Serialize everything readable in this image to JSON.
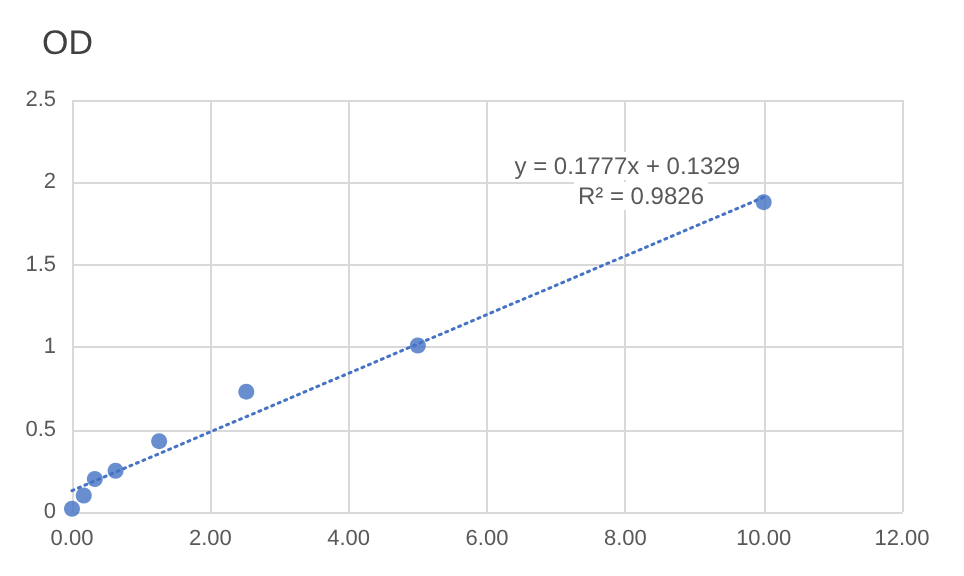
{
  "chart_data": {
    "type": "scatter",
    "title": "OD",
    "marker": "circle",
    "grid": true,
    "xlim": [
      0,
      12
    ],
    "xticks": [
      {
        "value": 0,
        "label": "0.00"
      },
      {
        "value": 2,
        "label": "2.00"
      },
      {
        "value": 4,
        "label": "4.00"
      },
      {
        "value": 6,
        "label": "6.00"
      },
      {
        "value": 8,
        "label": "8.00"
      },
      {
        "value": 10,
        "label": "10.00"
      },
      {
        "value": 12,
        "label": "12.00"
      }
    ],
    "ylim": [
      0,
      2.5
    ],
    "yticks": [
      0,
      0.5,
      1,
      1.5,
      2,
      2.5
    ],
    "series": [
      {
        "color": "#4472c4",
        "x": [
          0,
          0.17,
          0.33,
          0.63,
          1.26,
          2.52,
          5,
          10
        ],
        "values": [
          0.02,
          0.1,
          0.2,
          0.25,
          0.43,
          0.73,
          1.01,
          1.88
        ]
      },
      {
        "type": "line",
        "color": "#4472c4",
        "line_style": "dotted",
        "marker": "none",
        "x": [
          0,
          10
        ],
        "values": [
          0.13,
          1.91
        ]
      }
    ],
    "annotations": [
      "y = 0.1777x + 0.1329",
      "R² = 0.9826"
    ]
  }
}
